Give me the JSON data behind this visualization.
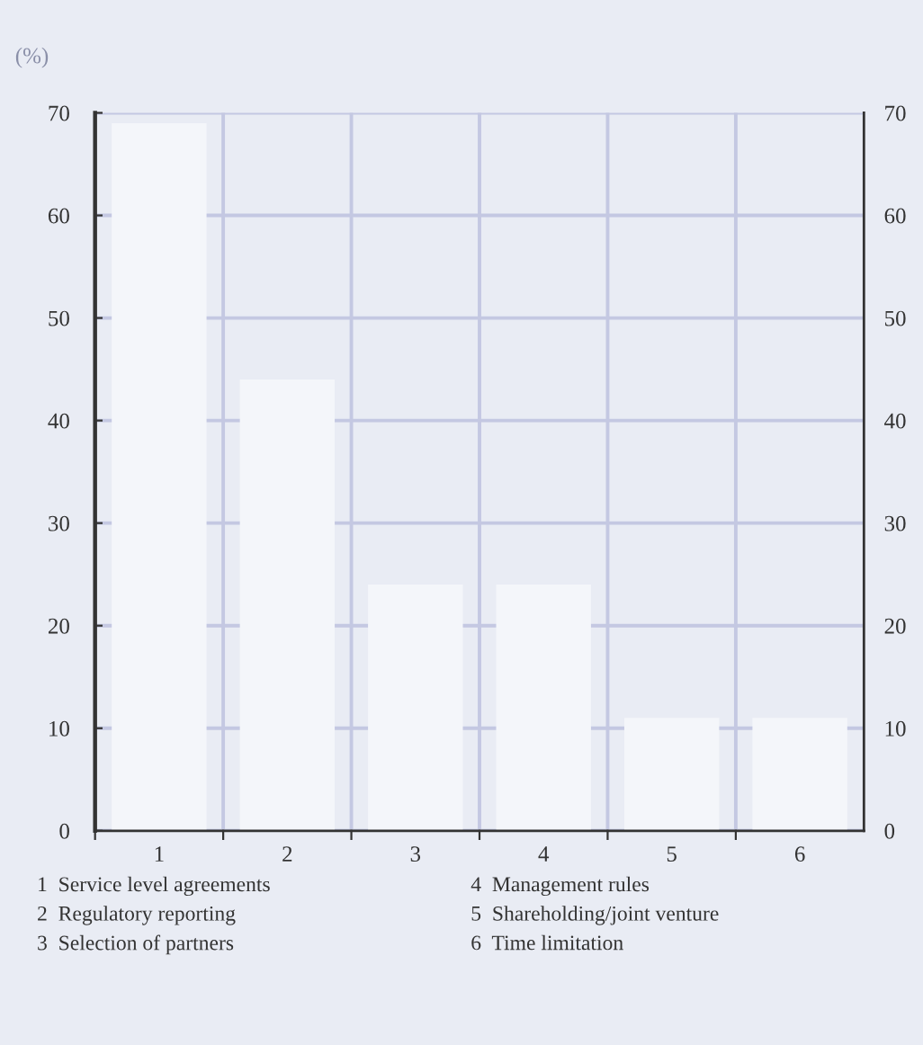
{
  "chart_data": {
    "type": "bar",
    "ylabel": "(%)",
    "categories": [
      "1",
      "2",
      "3",
      "4",
      "5",
      "6"
    ],
    "values": [
      69,
      44,
      24,
      24,
      11,
      11
    ],
    "color": "#f4f6fa",
    "ylim": [
      0,
      70
    ],
    "yticks": [
      0,
      10,
      20,
      30,
      40,
      50,
      60,
      70
    ],
    "y2lim": [
      0,
      70
    ],
    "y2ticks": [
      0,
      10,
      20,
      30,
      40,
      50,
      60,
      70
    ],
    "grid": true,
    "annotations": [
      "1  Service level agreements",
      "2  Regulatory reporting",
      "3  Selection of partners",
      "4  Management rules",
      "5  Shareholding/joint venture",
      "6  Time limitation"
    ]
  }
}
